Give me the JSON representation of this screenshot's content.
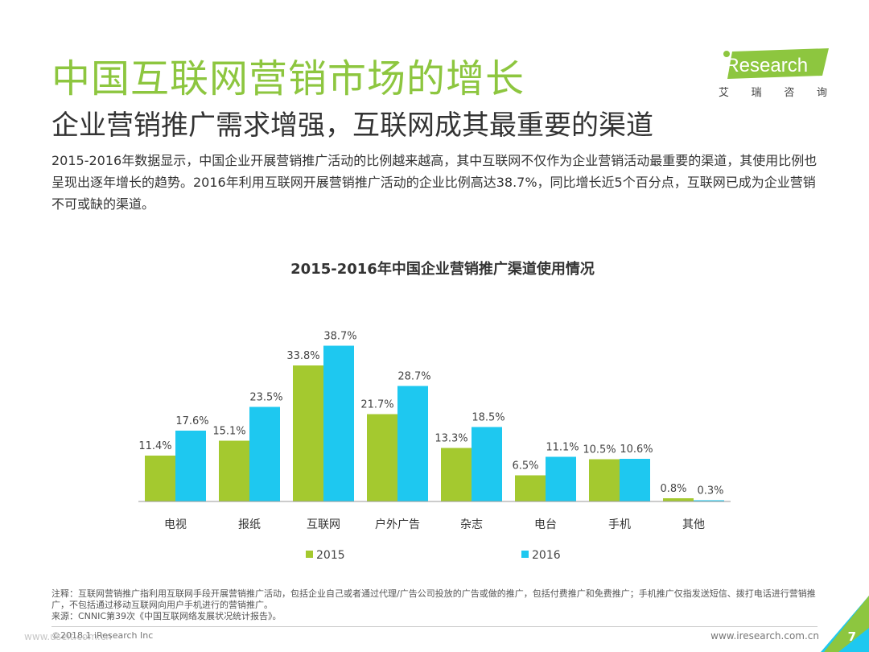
{
  "header": {
    "title": "中国互联网营销市场的增长",
    "subtitle": "企业营销推广需求增强，互联网成其最重要的渠道",
    "body": "2015-2016年数据显示，中国企业开展营销推广活动的比例越来越高，其中互联网不仅作为企业营销活动最重要的渠道，其使用比例也呈现出逐年增长的趋势。2016年利用互联网开展营销推广活动的企业比例高达38.7%，同比增长近5个百分点，互联网已成为企业营销不可或缺的渠道。"
  },
  "logo": {
    "text": "iResearch",
    "chars": [
      "艾",
      "瑞",
      "咨",
      "询"
    ]
  },
  "colors": {
    "accent_green": "#8dc63f",
    "series_2015": "#a4c92f",
    "series_2016": "#1ec8f0"
  },
  "chart_data": {
    "type": "bar",
    "title": "2015-2016年中国企业营销推广渠道使用情况",
    "categories": [
      "电视",
      "报纸",
      "互联网",
      "户外广告",
      "杂志",
      "电台",
      "手机",
      "其他"
    ],
    "series": [
      {
        "name": "2015",
        "values": [
          11.4,
          15.1,
          33.8,
          21.7,
          13.3,
          6.5,
          10.5,
          0.8
        ],
        "labels": [
          "11.4%",
          "15.1%",
          "33.8%",
          "21.7%",
          "13.3%",
          "6.5%",
          "10.5%",
          "0.8%"
        ]
      },
      {
        "name": "2016",
        "values": [
          17.6,
          23.5,
          38.7,
          28.7,
          18.5,
          11.1,
          10.6,
          0.3
        ],
        "labels": [
          "17.6%",
          "23.5%",
          "38.7%",
          "28.7%",
          "18.5%",
          "11.1%",
          "10.6%",
          "0.3%"
        ]
      }
    ],
    "legend_position": "bottom-left",
    "grid": false
  },
  "note": {
    "line1": "注释：互联网营销推广指利用互联网手段开展营销推广活动，包括企业自己或者通过代理/广告公司投放的广告或做的推广，包括付费推广和免费推广；手机推广仅指发送短信、拨打电话进行营销推广，不包括通过移动互联网向用户手机进行的营销推广。",
    "line2": "来源：CNNIC第39次《中国互联网络发展状况统计报告》。"
  },
  "footer": {
    "copyright": "©2018.1 iResearch Inc",
    "watermark": "www.useit.com.cn",
    "website": "www.iresearch.com.cn",
    "page": "7"
  }
}
